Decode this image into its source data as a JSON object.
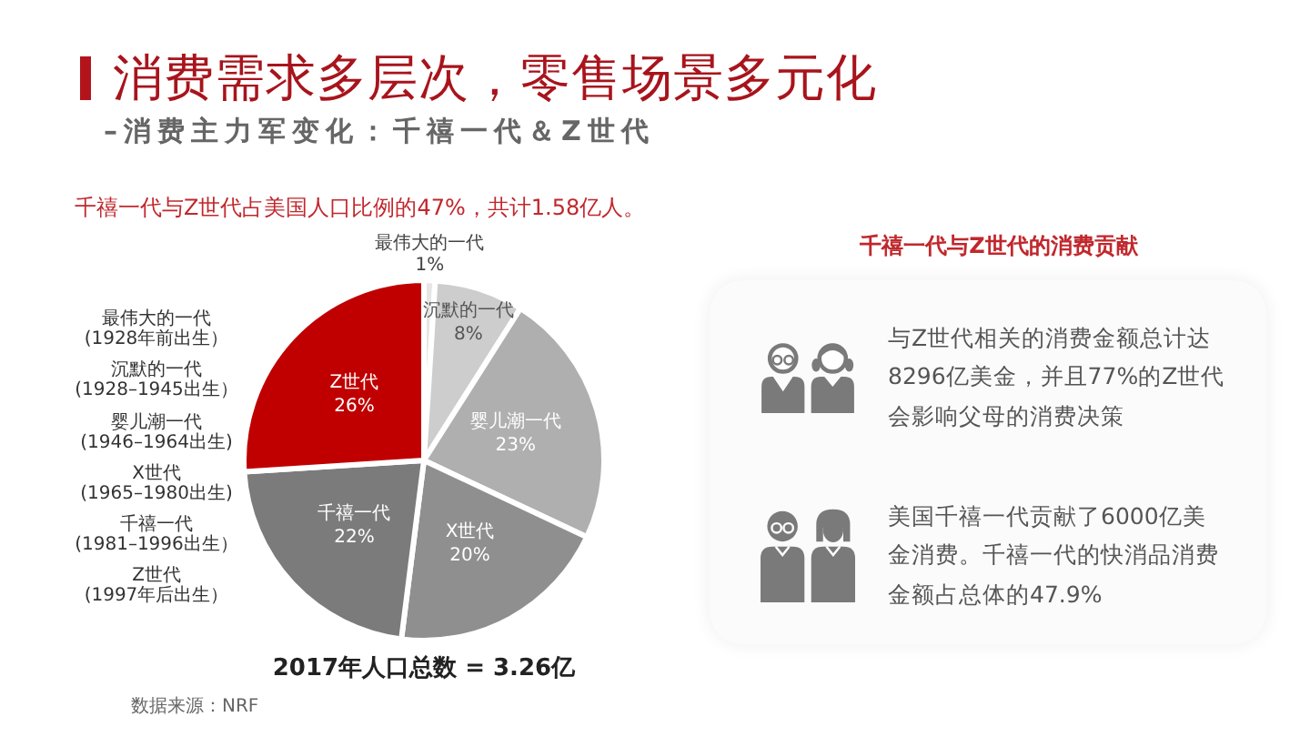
{
  "chart_data": [
    {
      "type": "pie",
      "title": "消费需求多层次，零售场景多元化",
      "subtitle": "–消费主力军变化：千禧一代＆Z世代",
      "categories": [
        "最伟大的一代",
        "沉默的一代",
        "婴儿潮一代",
        "X世代",
        "千禧一代",
        "Z世代"
      ],
      "values": [
        1,
        8,
        23,
        20,
        22,
        26
      ],
      "colors": [
        "#e6e6e6",
        "#cdcdcd",
        "#afafaf",
        "#8f8f8f",
        "#7b7b7b",
        "#c00000"
      ],
      "value_labels": [
        "1%",
        "8%",
        "23%",
        "20%",
        "22%",
        "26%"
      ],
      "annotations": [
        "千禧一代与Z世代占美国人口比例的47%，共计1.58亿人。",
        "最伟大的一代\n(1928年前出生）",
        "沉默的一代\n(1928–1945出生）",
        "婴儿潮一代\n(1946–1964出生)",
        "X世代\n(1965–1980出生)",
        "千禧一代\n(1981–1996出生）",
        "Z世代\n(1997年后出生）",
        "2017年人口总数 = 3.26亿",
        "数据来源：NRF"
      ]
    },
    {
      "type": "other",
      "title": "千禧一代与Z世代的消费贡献",
      "annotations": [
        "与Z世代相关的消费金额总计达8296亿美金，并且77%的Z世代会影响父母的消费决策",
        "美国千禧一代贡献了6000亿美金消费。千禧一代的快消品消费金额占总体的47.9%"
      ]
    }
  ]
}
